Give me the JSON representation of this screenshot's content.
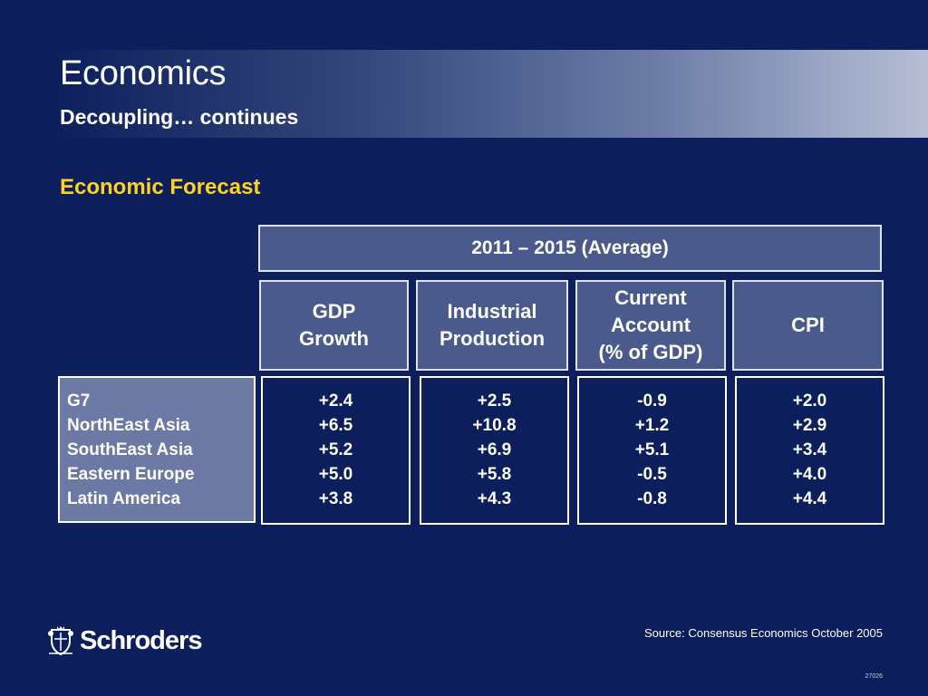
{
  "header": {
    "title": "Economics",
    "subtitle": "Decoupling… continues"
  },
  "section_heading": "Economic Forecast",
  "table": {
    "period": "2011 – 2015 (Average)",
    "columns": [
      "GDP\nGrowth",
      "Industrial\nProduction",
      "Current\nAccount\n(% of GDP)",
      "CPI"
    ],
    "regions": [
      "G7",
      "NorthEast Asia",
      "SouthEast Asia",
      "Eastern Europe",
      "Latin America"
    ],
    "values": [
      [
        "+2.4",
        "+6.5",
        "+5.2",
        "+5.0",
        "+3.8"
      ],
      [
        "+2.5",
        "+10.8",
        "+6.9",
        "+5.8",
        "+4.3"
      ],
      [
        "-0.9",
        "+1.2",
        "+5.1",
        "-0.5",
        "-0.8"
      ],
      [
        "+2.0",
        "+2.9",
        "+3.4",
        "+4.0",
        "+4.4"
      ]
    ]
  },
  "footer": {
    "brand": "Schroders",
    "logo_icon": "crest-icon",
    "source": "Source: Consensus Economics October 2005",
    "slide_code": "27026"
  },
  "colors": {
    "background": "#0c1f5c",
    "header_box": "#4a5a8c",
    "region_box": "#6c79a5",
    "heading_accent": "#ffd21f"
  }
}
